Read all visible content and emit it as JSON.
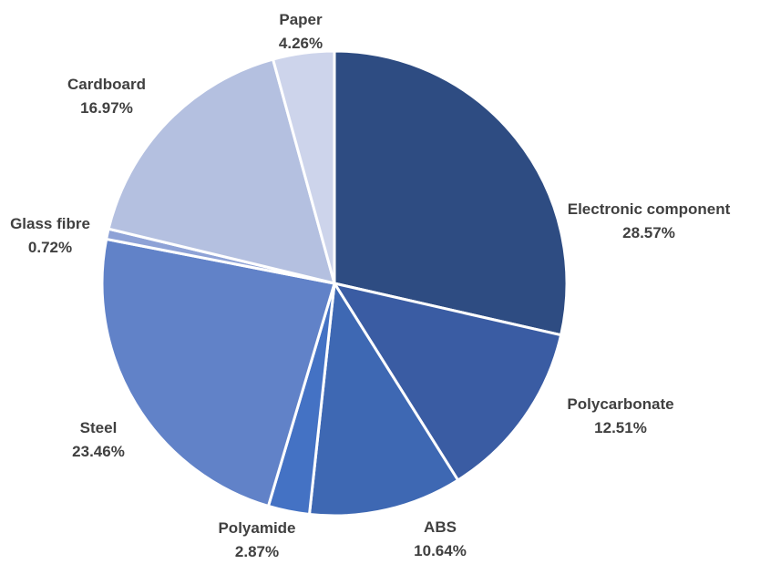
{
  "chart_data": {
    "type": "pie",
    "title": "",
    "start_angle_deg": 0,
    "direction": "clockwise",
    "legend": "none",
    "slices": [
      {
        "label": "Electronic component",
        "value": 28.57,
        "value_label": "28.57%",
        "color": "#2E4C82"
      },
      {
        "label": "Polycarbonate",
        "value": 12.51,
        "value_label": "12.51%",
        "color": "#3A5CA3"
      },
      {
        "label": "ABS",
        "value": 10.64,
        "value_label": "10.64%",
        "color": "#3E68B3"
      },
      {
        "label": "Polyamide",
        "value": 2.87,
        "value_label": "2.87%",
        "color": "#4472C4"
      },
      {
        "label": "Steel",
        "value": 23.46,
        "value_label": "23.46%",
        "color": "#6182C8"
      },
      {
        "label": "Glass fibre",
        "value": 0.72,
        "value_label": "0.72%",
        "color": "#8EA2D6"
      },
      {
        "label": "Cardboard",
        "value": 16.97,
        "value_label": "16.97%",
        "color": "#B4C0E0"
      },
      {
        "label": "Paper",
        "value": 4.26,
        "value_label": "4.26%",
        "color": "#CDD4EB"
      }
    ]
  }
}
